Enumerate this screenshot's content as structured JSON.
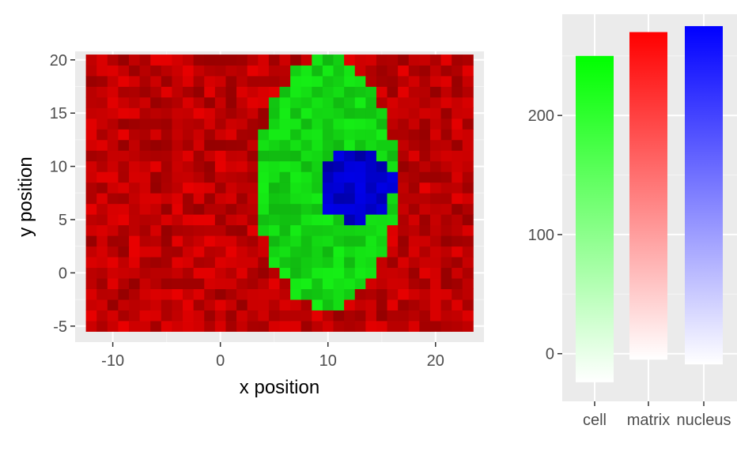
{
  "chart_data": [
    {
      "type": "heatmap",
      "title": "",
      "xlabel": "x position",
      "ylabel": "y position",
      "xlim": [
        -13.5,
        24.5
      ],
      "ylim": [
        -6.5,
        20.8
      ],
      "grid": true,
      "x_ticks": [
        -10,
        0,
        10,
        20
      ],
      "y_ticks": [
        -5,
        0,
        5,
        10,
        15,
        20
      ],
      "x_tick_labels": [
        "-10",
        "0",
        "10",
        "20"
      ],
      "y_tick_labels": [
        "-5",
        "0",
        "5",
        "10",
        "15",
        "20"
      ],
      "x_range": [
        -12,
        23
      ],
      "y_range": [
        -5,
        20
      ],
      "regions": [
        {
          "name": "matrix",
          "color": "#d00000",
          "shape": "background"
        },
        {
          "name": "cell",
          "color": "#14e014",
          "shape": "ellipse",
          "center": [
            9.9,
            8.5
          ],
          "radii": [
            6.6,
            11.7
          ]
        },
        {
          "name": "nucleus",
          "color": "#0000d0",
          "shape": "ellipse",
          "center": [
            12.6,
            8.2
          ],
          "radii": [
            3.6,
            3.3
          ]
        }
      ]
    },
    {
      "type": "bar",
      "title": "",
      "xlabel": "",
      "ylabel": "",
      "categories": [
        "cell",
        "matrix",
        "nucleus"
      ],
      "y_min_values": [
        -24,
        -5,
        -9
      ],
      "values": [
        250,
        270,
        275
      ],
      "bar_colors": [
        "#00ff00",
        "#ff0000",
        "#0000ff"
      ],
      "fill": "gradient from white at the bottom to full colour at the top",
      "ylim": [
        -40,
        285
      ],
      "y_ticks": [
        0,
        100,
        200
      ],
      "y_tick_labels": [
        "0",
        "100",
        "200"
      ],
      "grid": true
    }
  ]
}
